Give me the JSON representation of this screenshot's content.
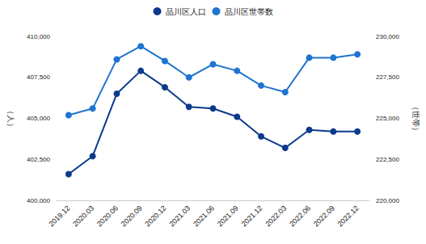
{
  "chart_data": {
    "type": "line",
    "categories": [
      "2019.12",
      "2020.03",
      "2020.06",
      "2020.09",
      "2020.12",
      "2021.03",
      "2021.06",
      "2021.09",
      "2021.12",
      "2022.03",
      "2022.06",
      "2022.09",
      "2022.12"
    ],
    "series": [
      {
        "name": "品川区人口",
        "color": "#0b3a8c",
        "marker": "circle",
        "values": [
          401600,
          402700,
          406500,
          407900,
          406900,
          405700,
          405600,
          405100,
          403900,
          403200,
          404300,
          404200,
          404200
        ]
      },
      {
        "name": "品川区世帯数",
        "color": "#1e74d0",
        "marker": "circle",
        "axis": "y2",
        "values": [
          225200,
          225600,
          228600,
          229400,
          228500,
          227500,
          228300,
          227900,
          227000,
          226600,
          228700,
          228700,
          228900
        ]
      }
    ],
    "ylabel": "（人）",
    "y2label": "（世帯）",
    "ylim": [
      400000,
      410000
    ],
    "yticks": [
      {
        "value": 400000,
        "label": "400,000"
      },
      {
        "value": 402500,
        "label": "402,500"
      },
      {
        "value": 405000,
        "label": "405,000"
      },
      {
        "value": 407500,
        "label": "407,500"
      },
      {
        "value": 410000,
        "label": "410,000"
      }
    ],
    "y2lim": [
      220000,
      230000
    ],
    "y2ticks": [
      {
        "value": 220000,
        "label": "220,000"
      },
      {
        "value": 222500,
        "label": "222,500"
      },
      {
        "value": 225000,
        "label": "225,000"
      },
      {
        "value": 227500,
        "label": "227,500"
      },
      {
        "value": 230000,
        "label": "230,000"
      }
    ],
    "grid": false,
    "legend": "top"
  }
}
